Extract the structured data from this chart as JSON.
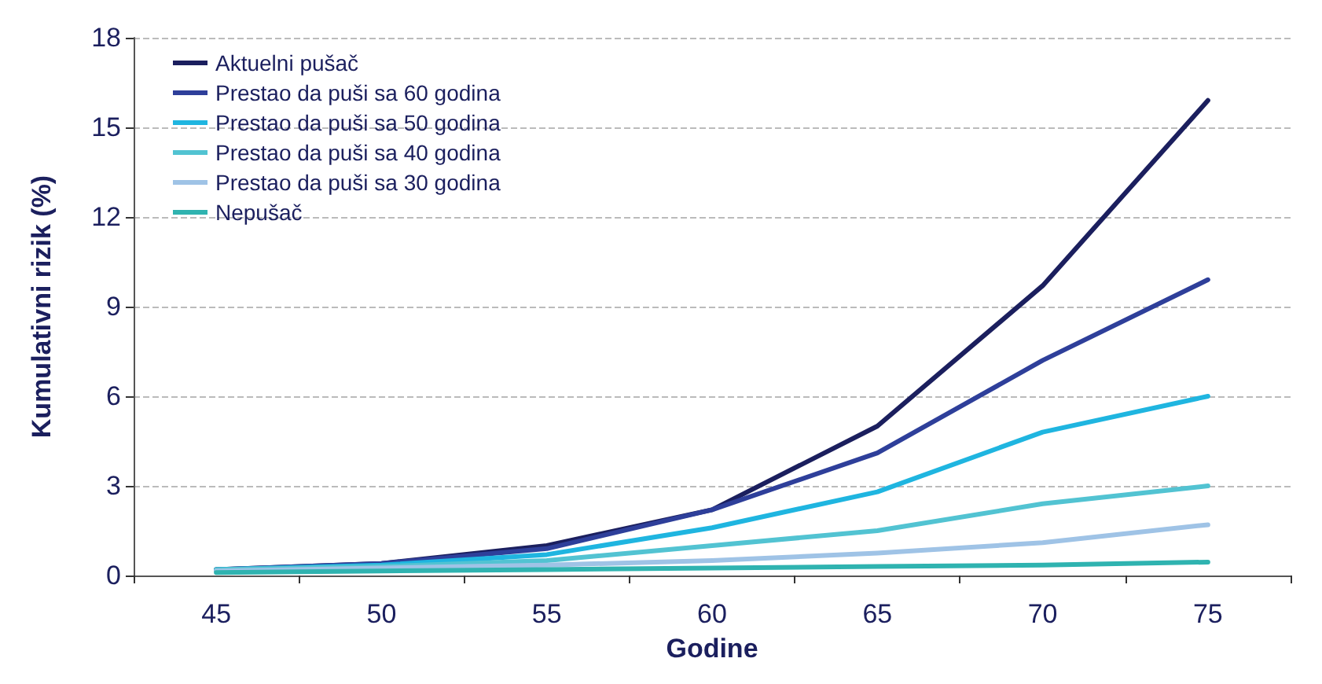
{
  "chart_data": {
    "type": "line",
    "xlabel": "Godine",
    "ylabel": "Kumulativni rizik (%)",
    "categories": [
      "45",
      "50",
      "55",
      "60",
      "65",
      "70",
      "75"
    ],
    "series": [
      {
        "name": "Aktuelni pušač",
        "color": "#1b1f5e",
        "values": [
          0.2,
          0.4,
          1.0,
          2.2,
          5.0,
          9.7,
          15.9
        ]
      },
      {
        "name": "Prestao da puši sa 60 godina",
        "color": "#2e3f9a",
        "values": [
          0.2,
          0.4,
          0.9,
          2.2,
          4.1,
          7.2,
          9.9
        ]
      },
      {
        "name": "Prestao da puši sa 50 godina",
        "color": "#1fb5e0",
        "values": [
          0.2,
          0.35,
          0.7,
          1.6,
          2.8,
          4.8,
          6.0
        ]
      },
      {
        "name": "Prestao da puši sa 40 godina",
        "color": "#52c3d2",
        "values": [
          0.2,
          0.3,
          0.5,
          1.0,
          1.5,
          2.4,
          3.0
        ]
      },
      {
        "name": "Prestao da puši sa 30 godina",
        "color": "#9fc3e6",
        "values": [
          0.15,
          0.25,
          0.35,
          0.5,
          0.75,
          1.1,
          1.7
        ]
      },
      {
        "name": "Nepušač",
        "color": "#2fb3b0",
        "values": [
          0.1,
          0.15,
          0.2,
          0.25,
          0.3,
          0.35,
          0.45
        ]
      }
    ],
    "ylim": [
      0,
      18
    ],
    "yticks": [
      0,
      3,
      6,
      9,
      12,
      15,
      18
    ],
    "grid": "y",
    "legend": "top left",
    "marker": "none",
    "line_style": "solid"
  }
}
